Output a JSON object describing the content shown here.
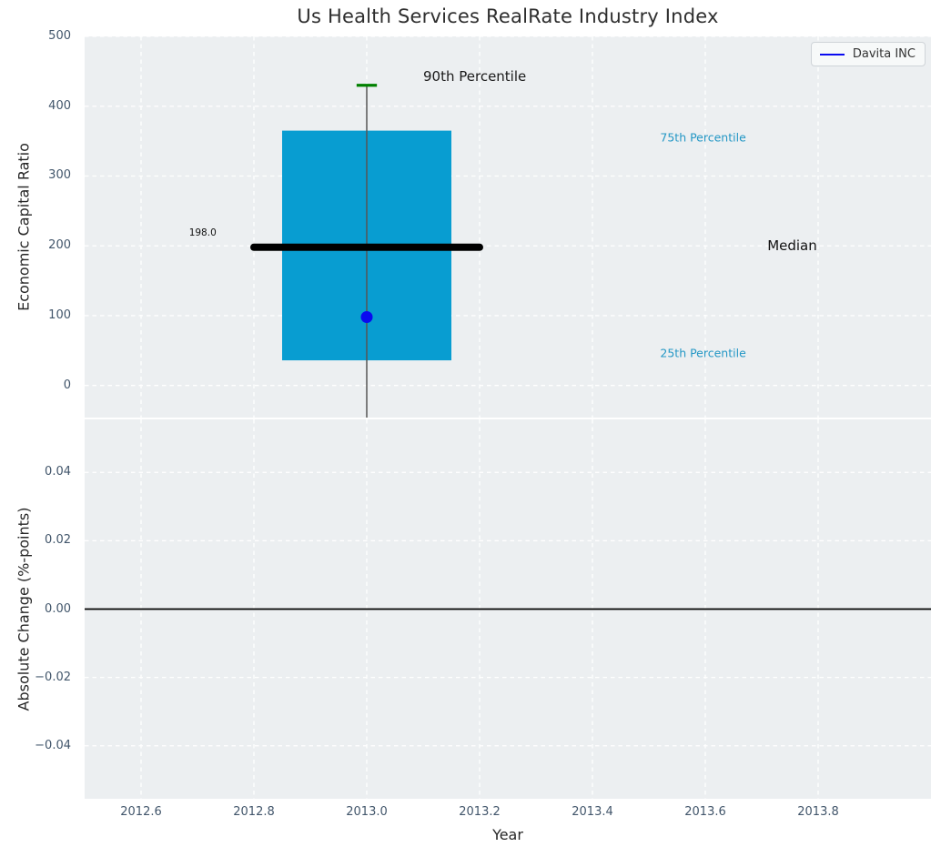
{
  "figure": {
    "background": "#ffffff",
    "plot_background": "#eceff1",
    "grid_color": "#ffffff",
    "tick_color": "#42566b",
    "label_color": "#262626"
  },
  "chart_data": [
    {
      "type": "box",
      "title": "Us Health Services RealRate Industry Index",
      "ylabel": "Economic Capital Ratio",
      "xlim": [
        2012.5,
        2014.0
      ],
      "ylim": [
        -46,
        500
      ],
      "grid": "dashed-white",
      "yticks": {
        "values": [
          500,
          400,
          300,
          200,
          100,
          0
        ],
        "labels": [
          "500",
          "400",
          "300",
          "200",
          "100",
          "0"
        ]
      },
      "legend": {
        "label": "Davita INC",
        "position": "upper right",
        "line_color": "#0a0af0"
      },
      "box": {
        "center_x": 2013.0,
        "box_left": 2012.85,
        "box_right": 2013.15,
        "q25": 36,
        "median": 198,
        "q75": 365,
        "p90": 430,
        "whisker_low_clipped_at": -46,
        "median_line_span": [
          2012.8,
          2013.2
        ],
        "cap_halfwidth": 0.018,
        "fill_color": "#089dd1",
        "median_color": "#000000",
        "whisker_color": "#555555",
        "cap_color": "#008000"
      },
      "point": {
        "series": "Davita INC",
        "x": 2013.0,
        "y": 98,
        "color": "#0a0af0"
      },
      "annotations": [
        {
          "text": "90th Percentile",
          "x": 2013.1,
          "y": 443,
          "color": "#1a1a1a",
          "font_size": 15
        },
        {
          "text": "75th Percentile",
          "x": 2013.52,
          "y": 356,
          "color": "#2397c5",
          "font_size": 12.5
        },
        {
          "text": "Median",
          "x": 2013.71,
          "y": 200,
          "color": "#111111",
          "font_size": 15
        },
        {
          "text": "25th Percentile",
          "x": 2013.52,
          "y": 46,
          "color": "#2397c5",
          "font_size": 12.5
        },
        {
          "text": "198.0",
          "x": 2012.685,
          "y": 219,
          "color": "#111111",
          "font_size": 10.5
        }
      ]
    },
    {
      "type": "line",
      "ylabel": "Absolute Change (%-points)",
      "xlabel": "Year",
      "xlim": [
        2012.5,
        2014.0
      ],
      "ylim": [
        -0.0555,
        0.0555
      ],
      "grid": "dashed-white",
      "yticks": {
        "values": [
          0.04,
          0.02,
          0,
          -0.02,
          -0.04
        ],
        "labels": [
          "0.04",
          "0.02",
          "0.00",
          "−0.02",
          "−0.04"
        ]
      },
      "xticks": {
        "values": [
          2012.6,
          2012.8,
          2013.0,
          2013.2,
          2013.4,
          2013.6,
          2013.8
        ],
        "labels": [
          "2012.6",
          "2012.8",
          "2013.0",
          "2013.2",
          "2013.4",
          "2013.6",
          "2013.8"
        ]
      },
      "zero_line": {
        "y": 0.0,
        "color": "#000000"
      },
      "series": []
    }
  ]
}
